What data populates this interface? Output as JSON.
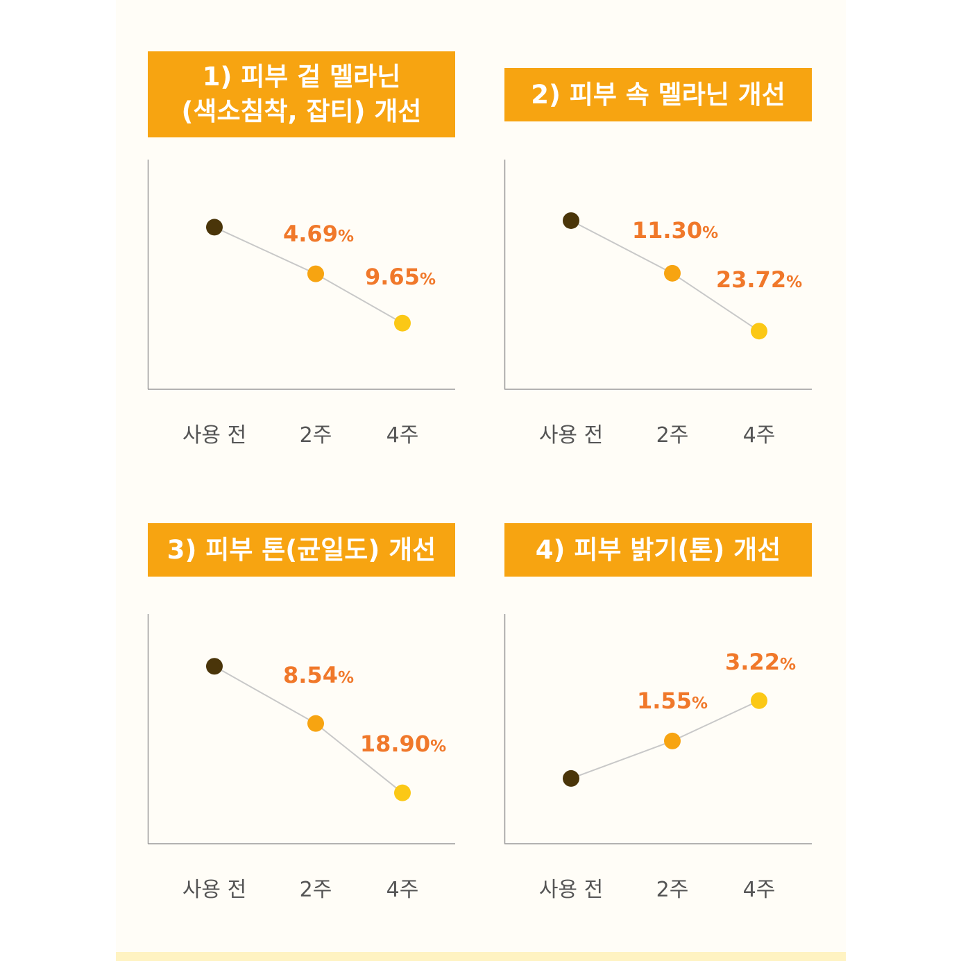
{
  "charts": [
    {
      "title": "1) 피부 겉 멜라닌\n(색소침착, 잡티) 개선"
    },
    {
      "title": "2) 피부 속 멜라닌 개선"
    },
    {
      "title": "3) 피부 톤(균일도) 개선"
    },
    {
      "title": "4) 피부 밝기(톤) 개선"
    }
  ],
  "colors": {
    "title_bg": "#f7a411",
    "value_text": "#f0782a",
    "line": "#c8c8c8",
    "axis": "#9a9a9a",
    "point_before": "#4a3509",
    "point_2w": "#f7a411",
    "point_4w": "#fbc816"
  },
  "chart_data": [
    {
      "type": "line",
      "title": "1) 피부 겉 멜라닌\n(색소침착, 잡티) 개선",
      "categories": [
        "사용 전",
        "2주",
        "4주"
      ],
      "values": [
        0,
        -4.69,
        -9.65
      ],
      "data_labels": [
        "",
        "4.69",
        "9.65"
      ],
      "unit": "%",
      "ylim": [
        -16.3,
        6.8
      ],
      "grid": false
    },
    {
      "type": "line",
      "title": "2) 피부 속 멜라닌 개선",
      "categories": [
        "사용 전",
        "2주",
        "4주"
      ],
      "values": [
        0,
        -11.3,
        -23.72
      ],
      "data_labels": [
        "",
        "11.30",
        "23.72"
      ],
      "unit": "%",
      "ylim": [
        -36.2,
        13.1
      ],
      "grid": false
    },
    {
      "type": "line",
      "title": "3) 피부 톤(균일도) 개선",
      "categories": [
        "사용 전",
        "2주",
        "4주"
      ],
      "values": [
        0,
        -8.54,
        -18.9
      ],
      "data_labels": [
        "",
        "8.54",
        "18.90"
      ],
      "unit": "%",
      "ylim": [
        -26.5,
        7.8
      ],
      "grid": false
    },
    {
      "type": "line",
      "title": "4) 피부 밝기(톤) 개선",
      "categories": [
        "사용 전",
        "2주",
        "4주"
      ],
      "values": [
        0,
        1.55,
        3.22
      ],
      "data_labels": [
        "",
        "1.55",
        "3.22"
      ],
      "unit": "%",
      "ylim": [
        -2.7,
        6.8
      ],
      "grid": false
    }
  ]
}
